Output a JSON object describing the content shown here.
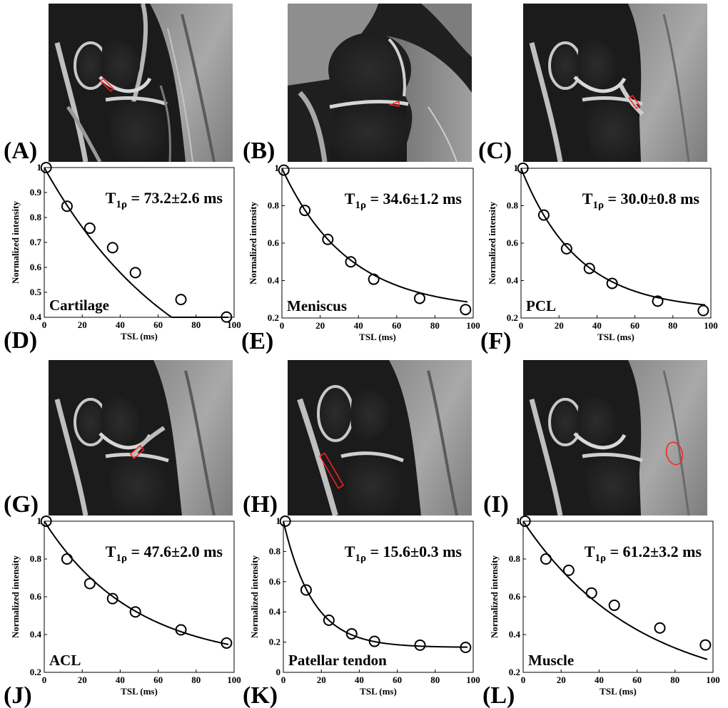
{
  "mri_panels": [
    {
      "label": "(A)",
      "roi": "Cartilage"
    },
    {
      "label": "(B)",
      "roi": "Meniscus"
    },
    {
      "label": "(C)",
      "roi": "PCL"
    },
    {
      "label": "(G)",
      "roi": "ACL"
    },
    {
      "label": "(H)",
      "roi": "Patellar tendon"
    },
    {
      "label": "(I)",
      "roi": "Muscle"
    }
  ],
  "chart_data": [
    {
      "type": "scatter",
      "panel_label": "(D)",
      "tissue": "Cartilage",
      "t1rho_label": "T1ρ = 73.2±2.6 ms",
      "t1rho_prefix": "T",
      "t1rho_sub": "1ρ",
      "t1rho_value": " = 73.2±2.6 ms",
      "xlabel": "TSL (ms)",
      "ylabel": "Normalized intensity",
      "x": [
        1,
        12,
        24,
        36,
        48,
        72,
        96
      ],
      "y": [
        1.0,
        0.845,
        0.757,
        0.679,
        0.579,
        0.471,
        0.401
      ],
      "fit": {
        "tau": 73.2,
        "offset": 0.0
      },
      "xlim": [
        0,
        100
      ],
      "ylim": [
        0.4,
        1.0
      ],
      "yticks": [
        "0.4",
        "0.5",
        "0.6",
        "0.7",
        "0.8",
        "0.9",
        "1"
      ],
      "xticks": [
        "0",
        "20",
        "40",
        "60",
        "80",
        "100"
      ]
    },
    {
      "type": "scatter",
      "panel_label": "(E)",
      "tissue": "Meniscus",
      "t1rho_label": "T1ρ = 34.6±1.2 ms",
      "t1rho_prefix": "T",
      "t1rho_sub": "1ρ",
      "t1rho_value": " = 34.6±1.2 ms",
      "xlabel": "TSL (ms)",
      "ylabel": "Normalized intensity",
      "x": [
        1,
        12,
        24,
        36,
        48,
        72,
        96
      ],
      "y": [
        0.99,
        0.775,
        0.62,
        0.5,
        0.407,
        0.305,
        0.245
      ],
      "fit": {
        "tau": 34.6,
        "offset": 0.24
      },
      "xlim": [
        0,
        100
      ],
      "ylim": [
        0.2,
        1.0
      ],
      "yticks": [
        "0.2",
        "0.4",
        "0.6",
        "0.8",
        "1"
      ],
      "xticks": [
        "0",
        "20",
        "40",
        "60",
        "80",
        "100"
      ]
    },
    {
      "type": "scatter",
      "panel_label": "(F)",
      "tissue": "PCL",
      "t1rho_label": "T1ρ = 30.0±0.8 ms",
      "t1rho_prefix": "T",
      "t1rho_sub": "1ρ",
      "t1rho_value": " = 30.0±0.8 ms",
      "xlabel": "TSL (ms)",
      "ylabel": "Normalized intensity",
      "x": [
        1,
        12,
        24,
        36,
        48,
        72,
        96
      ],
      "y": [
        1.0,
        0.75,
        0.57,
        0.465,
        0.385,
        0.29,
        0.24
      ],
      "fit": {
        "tau": 30.0,
        "offset": 0.24
      },
      "xlim": [
        0,
        100
      ],
      "ylim": [
        0.2,
        1.0
      ],
      "yticks": [
        "0.2",
        "0.4",
        "0.6",
        "0.8",
        "1"
      ],
      "xticks": [
        "0",
        "20",
        "40",
        "60",
        "80",
        "100"
      ]
    },
    {
      "type": "scatter",
      "panel_label": "(J)",
      "tissue": "ACL",
      "t1rho_label": "T1ρ = 47.6±2.0 ms",
      "t1rho_prefix": "T",
      "t1rho_sub": "1ρ",
      "t1rho_value": " = 47.6±2.0 ms",
      "xlabel": "TSL (ms)",
      "ylabel": "Normalized intensity",
      "x": [
        1,
        12,
        24,
        36,
        48,
        72,
        96
      ],
      "y": [
        1.0,
        0.8,
        0.67,
        0.59,
        0.52,
        0.425,
        0.355
      ],
      "fit": {
        "tau": 47.6,
        "offset": 0.25
      },
      "xlim": [
        0,
        100
      ],
      "ylim": [
        0.2,
        1.0
      ],
      "yticks": [
        "0.2",
        "0.4",
        "0.6",
        "0.8",
        "1"
      ],
      "xticks": [
        "0",
        "20",
        "40",
        "60",
        "80",
        "100"
      ]
    },
    {
      "type": "scatter",
      "panel_label": "(K)",
      "tissue": "Patellar tendon",
      "t1rho_label": "T1ρ = 15.6±0.3 ms",
      "t1rho_prefix": "T",
      "t1rho_sub": "1ρ",
      "t1rho_value": " = 15.6±0.3 ms",
      "xlabel": "TSL (ms)",
      "ylabel": "Normalized intensity",
      "x": [
        1,
        12,
        24,
        36,
        48,
        72,
        96
      ],
      "y": [
        1.0,
        0.545,
        0.345,
        0.255,
        0.205,
        0.18,
        0.165
      ],
      "fit": {
        "tau": 15.6,
        "offset": 0.165
      },
      "xlim": [
        0,
        100
      ],
      "ylim": [
        0,
        1.0
      ],
      "yticks": [
        "0",
        "0.2",
        "0.4",
        "0.6",
        "0.8",
        "1"
      ],
      "xticks": [
        "0",
        "20",
        "40",
        "60",
        "80",
        "100"
      ]
    },
    {
      "type": "scatter",
      "panel_label": "(L)",
      "tissue": "Muscle",
      "t1rho_label": "T1ρ = 61.2±3.2 ms",
      "t1rho_prefix": "T",
      "t1rho_sub": "1ρ",
      "t1rho_value": " = 61.2±3.2 ms",
      "xlabel": "TSL (ms)",
      "ylabel": "Normalized intensity",
      "x": [
        1,
        12,
        24,
        36,
        48,
        72,
        96
      ],
      "y": [
        1.0,
        0.8,
        0.74,
        0.62,
        0.555,
        0.435,
        0.345
      ],
      "fit": {
        "tau": 61.2,
        "offset": 0.08
      },
      "xlim": [
        0,
        100
      ],
      "ylim": [
        0.2,
        1.0
      ],
      "yticks": [
        "0.2",
        "0.4",
        "0.6",
        "0.8",
        "1"
      ],
      "xticks": [
        "0",
        "20",
        "40",
        "60",
        "80",
        "100"
      ]
    }
  ],
  "colors": {
    "roi": "#ff2020",
    "ink": "#000000",
    "mri_bg": "#1b1b1b"
  }
}
